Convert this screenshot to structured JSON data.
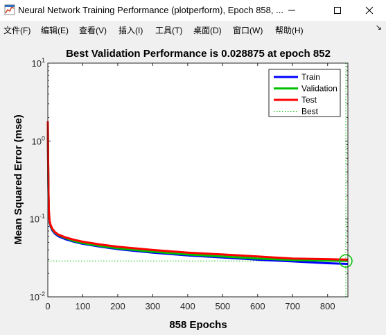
{
  "window": {
    "title": "Neural Network Training Performance (plotperform), Epoch 858, ..."
  },
  "menu": {
    "items": [
      "文件(F)",
      "编辑(E)",
      "查看(V)",
      "插入(I)",
      "工具(T)",
      "桌面(D)",
      "窗口(W)",
      "帮助(H)"
    ],
    "overflow": "↘"
  },
  "chart_data": {
    "type": "line",
    "title": "Best Validation Performance is 0.028875 at epoch 852",
    "xlabel": "858 Epochs",
    "ylabel": "Mean Squared Error  (mse)",
    "xlim": [
      0,
      858
    ],
    "ylim": [
      0.01,
      10
    ],
    "yscale": "log",
    "x_ticks": [
      0,
      100,
      200,
      300,
      400,
      500,
      600,
      700,
      800
    ],
    "y_ticks": [
      {
        "base": "10",
        "exp": "-2",
        "value": 0.01
      },
      {
        "base": "10",
        "exp": "-1",
        "value": 0.1
      },
      {
        "base": "10",
        "exp": "0",
        "value": 1
      },
      {
        "base": "10",
        "exp": "1",
        "value": 10
      }
    ],
    "legend_position": "top-right",
    "series": [
      {
        "name": "Train",
        "color": "#0000ff",
        "x": [
          0,
          1,
          2,
          3,
          5,
          8,
          12,
          20,
          30,
          50,
          75,
          100,
          150,
          200,
          300,
          400,
          500,
          600,
          700,
          800,
          858
        ],
        "y": [
          1.6,
          0.5,
          0.2,
          0.12,
          0.09,
          0.08,
          0.072,
          0.065,
          0.06,
          0.055,
          0.051,
          0.048,
          0.044,
          0.041,
          0.037,
          0.034,
          0.032,
          0.03,
          0.0285,
          0.027,
          0.0265
        ]
      },
      {
        "name": "Validation",
        "color": "#00c000",
        "x": [
          0,
          1,
          2,
          3,
          5,
          8,
          12,
          20,
          30,
          50,
          75,
          100,
          150,
          200,
          300,
          400,
          500,
          600,
          700,
          800,
          852,
          858
        ],
        "y": [
          1.7,
          0.52,
          0.21,
          0.125,
          0.093,
          0.082,
          0.074,
          0.067,
          0.062,
          0.057,
          0.052,
          0.049,
          0.045,
          0.042,
          0.038,
          0.035,
          0.033,
          0.031,
          0.0297,
          0.0291,
          0.028875,
          0.0289
        ]
      },
      {
        "name": "Test",
        "color": "#ff0000",
        "x": [
          0,
          1,
          2,
          3,
          5,
          8,
          12,
          20,
          30,
          50,
          75,
          100,
          150,
          200,
          300,
          400,
          500,
          600,
          700,
          800,
          858
        ],
        "y": [
          1.8,
          0.55,
          0.22,
          0.13,
          0.095,
          0.084,
          0.076,
          0.068,
          0.063,
          0.058,
          0.054,
          0.051,
          0.047,
          0.044,
          0.04,
          0.037,
          0.035,
          0.033,
          0.031,
          0.0305,
          0.03
        ]
      }
    ],
    "best": {
      "name": "Best",
      "epoch": 852,
      "value": 0.028875,
      "color": "#00c000"
    }
  }
}
